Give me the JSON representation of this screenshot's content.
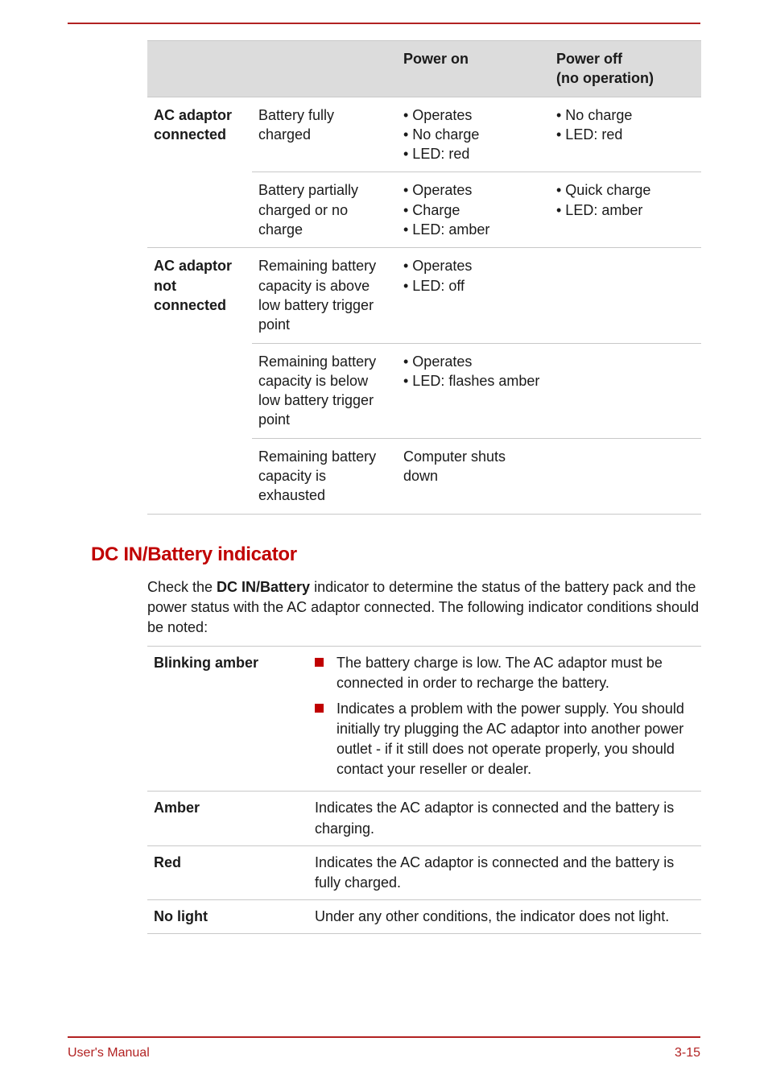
{
  "colors": {
    "accent": "#c00000",
    "rule": "#b22222",
    "border": "#c8c8c8",
    "header_bg": "#dcdcdc",
    "text": "#1a1a1a"
  },
  "table1": {
    "header": {
      "c1": "",
      "c2": "",
      "c3": "Power on",
      "c4_line1": "Power off",
      "c4_line2": "(no operation)"
    },
    "rows": [
      {
        "a": "AC adaptor connected",
        "b": "Battery fully charged",
        "c": "• Operates\n• No charge\n• LED: red",
        "d": "• No charge\n• LED: red"
      },
      {
        "a": "",
        "b": "Battery partially charged or no charge",
        "c": "• Operates\n• Charge\n• LED: amber",
        "d": "• Quick charge\n• LED: amber"
      },
      {
        "a": "AC adaptor not connected",
        "b": "Remaining battery capacity is above low battery trigger point",
        "c": "• Operates\n• LED: off",
        "d": ""
      },
      {
        "a": "",
        "b": "Remaining battery capacity is below low battery trigger point",
        "c": "• Operates\n• LED: flashes amber",
        "d": ""
      },
      {
        "a": "",
        "b": "Remaining battery capacity is exhausted",
        "c": "Computer shuts down",
        "d": ""
      }
    ]
  },
  "section": {
    "heading": "DC IN/Battery indicator",
    "para_pre": "Check the ",
    "para_bold": "DC IN/Battery",
    "para_post": " indicator to determine the status of the battery pack and the power status with the AC adaptor connected. The following indicator conditions should be noted:"
  },
  "table2": {
    "rows": [
      {
        "key": "Blinking amber",
        "type": "bullets",
        "bullets": [
          "The battery charge is low. The AC adaptor must be connected in order to recharge the battery.",
          "Indicates a problem with the power supply. You should initially try plugging the AC adaptor into another power outlet - if it still does not operate properly, you should contact your reseller or dealer."
        ]
      },
      {
        "key": "Amber",
        "type": "text",
        "text": "Indicates the AC adaptor is connected and the battery is charging."
      },
      {
        "key": "Red",
        "type": "text",
        "text": "Indicates the AC adaptor is connected and the battery is fully charged."
      },
      {
        "key": "No light",
        "type": "text",
        "text": "Under any other conditions, the indicator does not light."
      }
    ]
  },
  "footer": {
    "left": "User's Manual",
    "right": "3-15"
  }
}
